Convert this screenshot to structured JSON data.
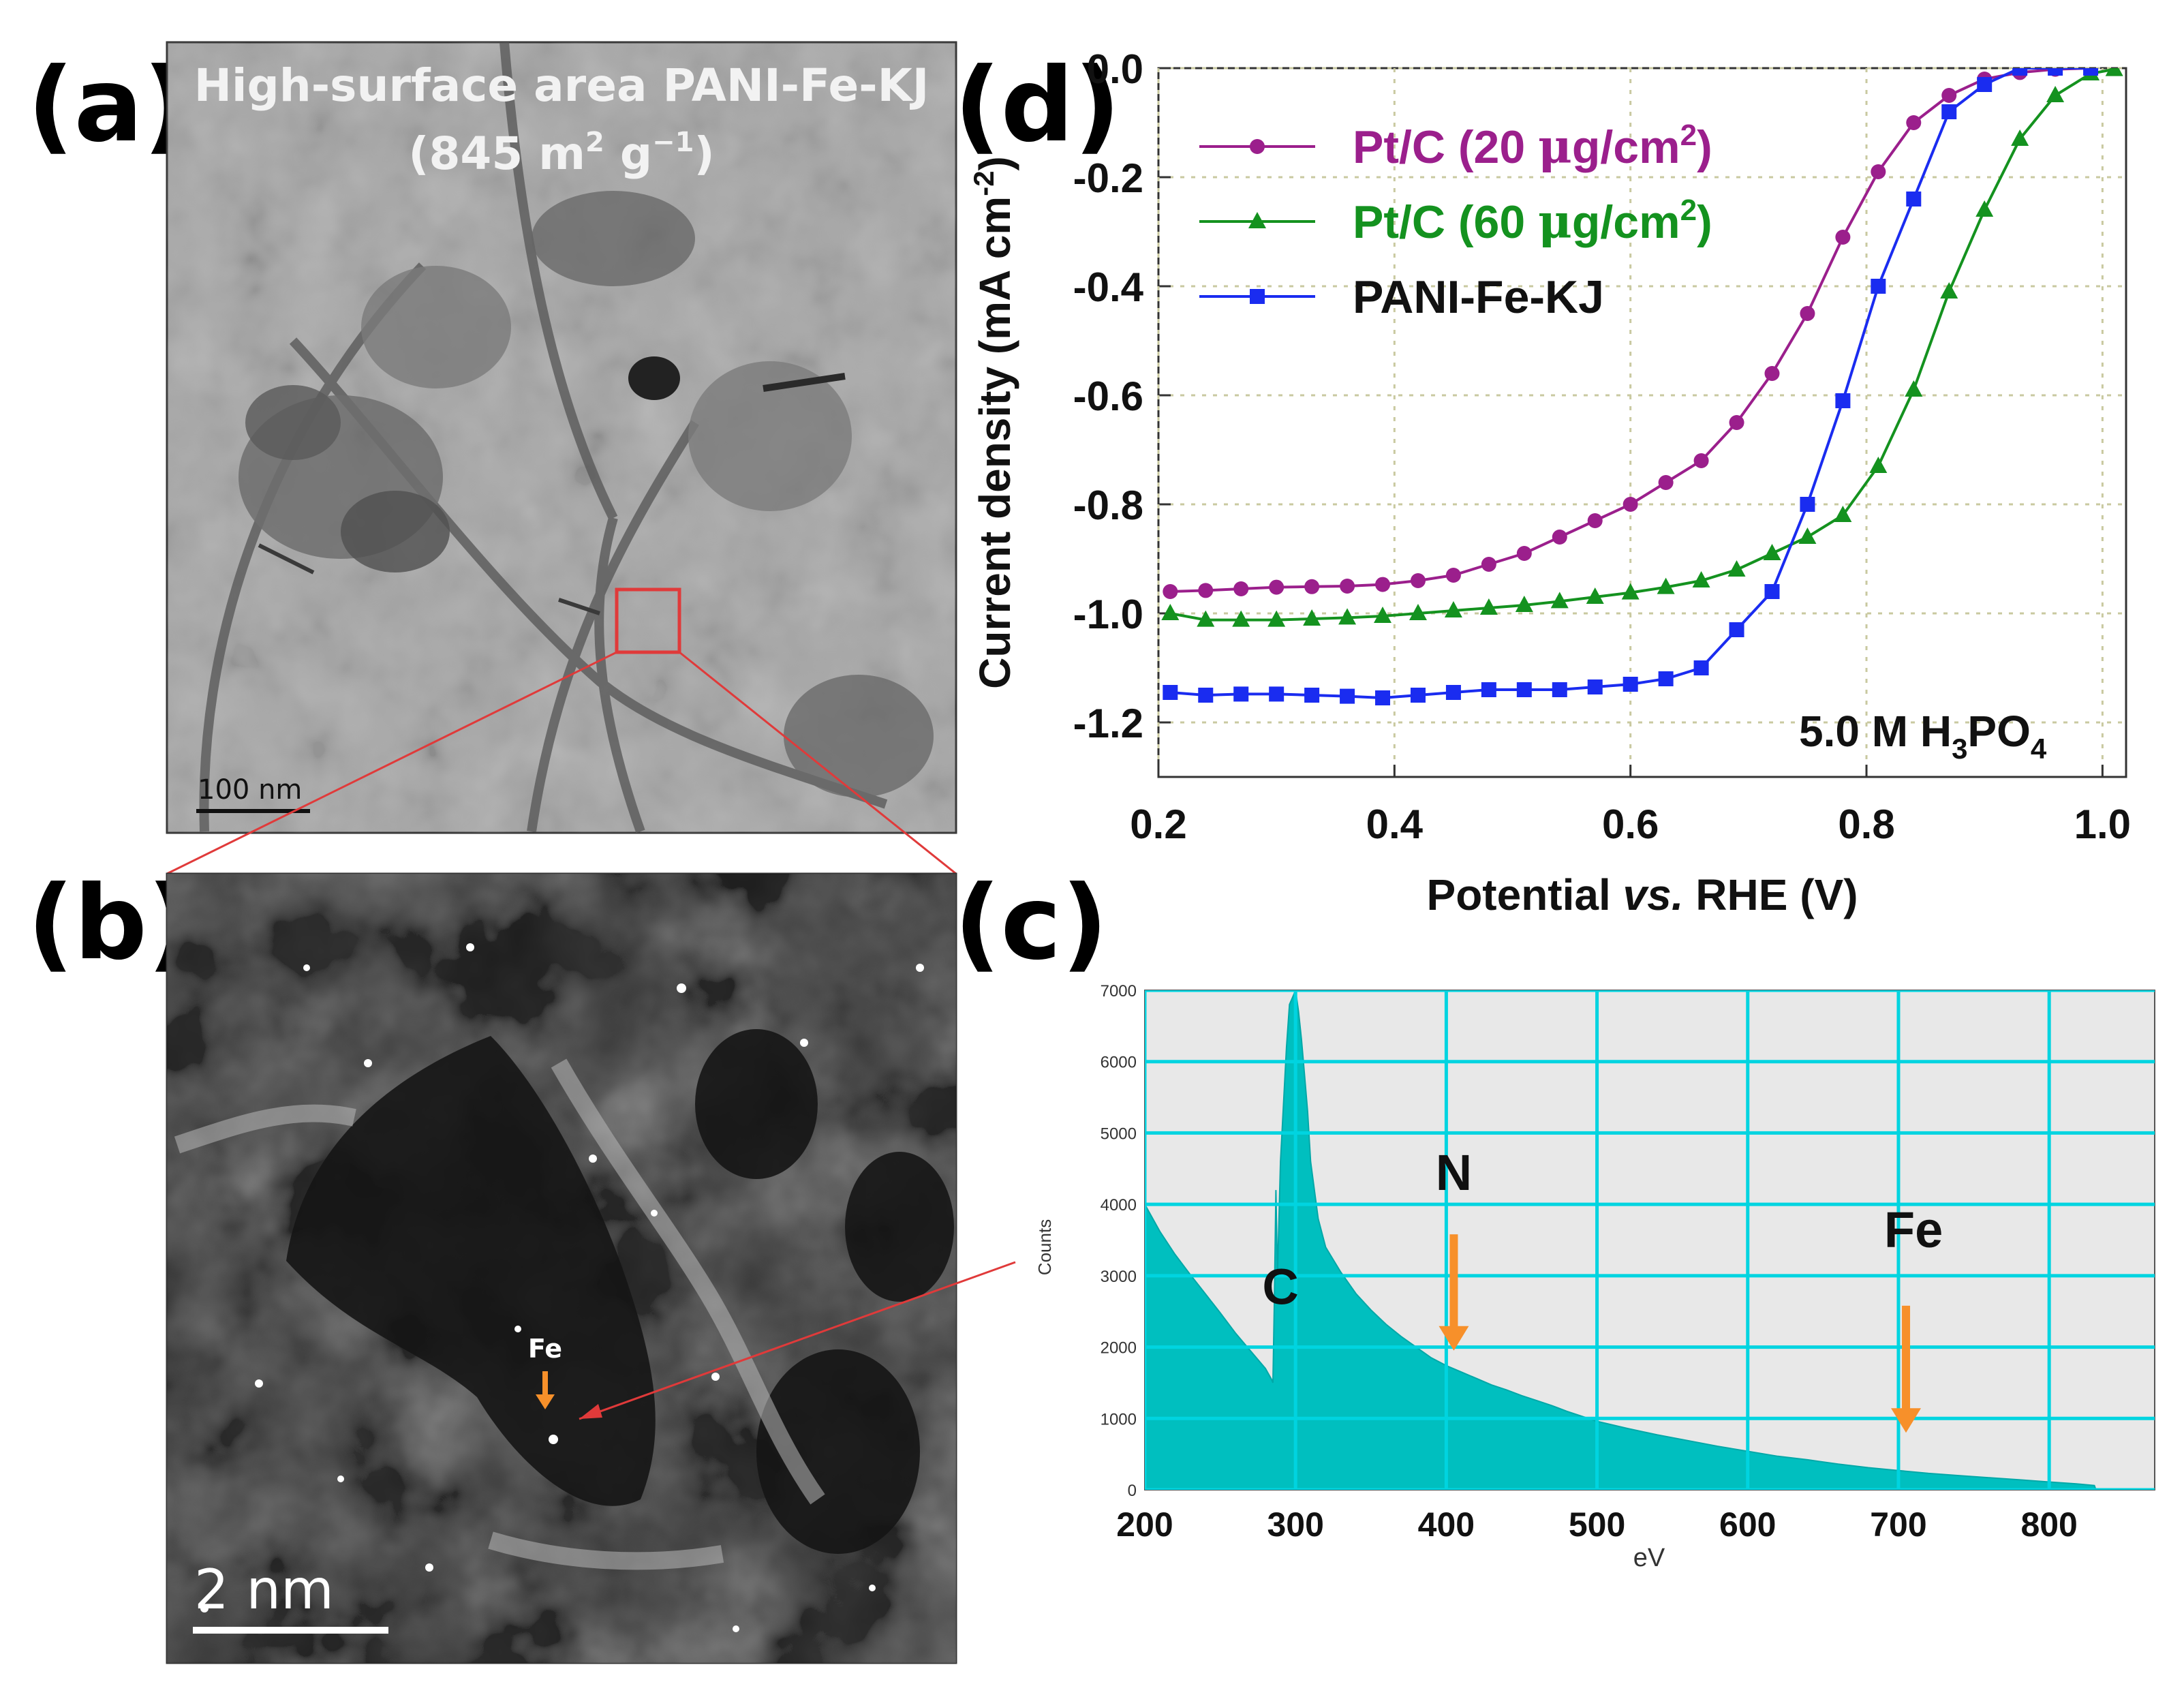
{
  "panels": {
    "a": {
      "label": "(a)",
      "title_line1": "High-surface area PANI-Fe-KJ",
      "title_line2_pre": "(845 m",
      "title_line2_sup1": "2",
      "title_line2_mid": " g",
      "title_line2_sup2": "−1",
      "title_line2_post": ")",
      "scale_bar": "100 nm"
    },
    "b": {
      "label": "(b)",
      "scale_bar": "2 nm",
      "fe_marker": "Fe"
    },
    "c": {
      "label": "(c)"
    },
    "d": {
      "label": "(d)"
    }
  },
  "colors": {
    "pt20": "#9b1f8c",
    "pt60": "#14921f",
    "pani": "#1a2cf0",
    "eels_fill": "#00bfbf",
    "eels_grid": "#00d4e0",
    "eels_bg": "#e8e8e8",
    "arrow": "#f7902a",
    "zoom_box": "#e03a3a"
  },
  "chart_data": [
    {
      "type": "line",
      "panel": "d",
      "xlabel_pre": "Potential ",
      "xlabel_italic": "vs.",
      "xlabel_post": " RHE (V)",
      "ylabel": "Current density (mA cm",
      "ylabel_sup": "-2",
      "ylabel_close": ")",
      "xlim": [
        0.2,
        1.02
      ],
      "ylim": [
        -1.3,
        0.0
      ],
      "xticks": [
        "0.2",
        "0.4",
        "0.6",
        "0.8",
        "1.0"
      ],
      "yticks": [
        "0.0",
        "-0.2",
        "-0.4",
        "-0.6",
        "-0.8",
        "-1.0",
        "-1.2"
      ],
      "grid": true,
      "annotation_pre": "5.0 M H",
      "annotation_sub1": "3",
      "annotation_mid": "PO",
      "annotation_sub2": "4",
      "legend_position": "top-left",
      "series": [
        {
          "name": "Pt/C (20 μg/cm²)",
          "legend_main": "Pt/C (20 ",
          "legend_mu": "μ",
          "legend_unit": "g/cm",
          "legend_sup": "2",
          "legend_close": ")",
          "marker": "circle",
          "color": "#9b1f8c",
          "x": [
            0.21,
            0.24,
            0.27,
            0.3,
            0.33,
            0.36,
            0.39,
            0.42,
            0.45,
            0.48,
            0.51,
            0.54,
            0.57,
            0.6,
            0.63,
            0.66,
            0.69,
            0.72,
            0.75,
            0.78,
            0.81,
            0.84,
            0.87,
            0.9,
            0.93,
            0.96,
            0.99
          ],
          "y": [
            -0.96,
            -0.958,
            -0.955,
            -0.952,
            -0.951,
            -0.95,
            -0.947,
            -0.94,
            -0.93,
            -0.91,
            -0.89,
            -0.86,
            -0.83,
            -0.8,
            -0.76,
            -0.72,
            -0.65,
            -0.56,
            -0.45,
            -0.31,
            -0.19,
            -0.1,
            -0.05,
            -0.02,
            -0.008,
            -0.002,
            0.0
          ]
        },
        {
          "name": "Pt/C (60 μg/cm²)",
          "legend_main": "Pt/C (60 ",
          "legend_mu": "μ",
          "legend_unit": "g/cm",
          "legend_sup": "2",
          "legend_close": ")",
          "marker": "triangle",
          "color": "#14921f",
          "x": [
            0.21,
            0.24,
            0.27,
            0.3,
            0.33,
            0.36,
            0.39,
            0.42,
            0.45,
            0.48,
            0.51,
            0.54,
            0.57,
            0.6,
            0.63,
            0.66,
            0.69,
            0.72,
            0.75,
            0.78,
            0.81,
            0.84,
            0.87,
            0.9,
            0.93,
            0.96,
            0.99,
            1.01
          ],
          "y": [
            -1.0,
            -1.012,
            -1.012,
            -1.012,
            -1.01,
            -1.008,
            -1.005,
            -1.0,
            -0.995,
            -0.99,
            -0.985,
            -0.978,
            -0.97,
            -0.962,
            -0.952,
            -0.94,
            -0.92,
            -0.89,
            -0.86,
            -0.82,
            -0.73,
            -0.59,
            -0.41,
            -0.26,
            -0.13,
            -0.05,
            -0.01,
            -0.002
          ]
        },
        {
          "name": "PANI-Fe-KJ",
          "legend_main": "PANI-Fe-KJ",
          "marker": "square",
          "color": "#1a2cf0",
          "x": [
            0.21,
            0.24,
            0.27,
            0.3,
            0.33,
            0.36,
            0.39,
            0.42,
            0.45,
            0.48,
            0.51,
            0.54,
            0.57,
            0.6,
            0.63,
            0.66,
            0.69,
            0.72,
            0.75,
            0.78,
            0.81,
            0.84,
            0.87,
            0.9,
            0.93,
            0.96,
            0.99
          ],
          "y": [
            -1.145,
            -1.15,
            -1.148,
            -1.148,
            -1.15,
            -1.152,
            -1.155,
            -1.15,
            -1.145,
            -1.14,
            -1.14,
            -1.14,
            -1.135,
            -1.13,
            -1.12,
            -1.1,
            -1.03,
            -0.96,
            -0.8,
            -0.61,
            -0.4,
            -0.24,
            -0.08,
            -0.03,
            0.0,
            0.0,
            0.0
          ]
        }
      ]
    },
    {
      "type": "area",
      "panel": "c",
      "xlabel": "eV",
      "ylabel": "Counts",
      "xlim": [
        200,
        870
      ],
      "ylim": [
        0,
        7000
      ],
      "xticks": [
        "200",
        "300",
        "400",
        "500",
        "600",
        "700",
        "800"
      ],
      "yticks": [
        "0",
        "1000",
        "2000",
        "3000",
        "4000",
        "5000",
        "6000",
        "7000"
      ],
      "grid": true,
      "x": [
        200,
        210,
        220,
        230,
        240,
        250,
        260,
        270,
        280,
        284,
        285,
        286,
        287,
        288,
        290,
        292,
        294,
        296,
        298,
        300,
        302,
        304,
        306,
        308,
        310,
        315,
        320,
        330,
        340,
        350,
        360,
        370,
        380,
        390,
        400,
        410,
        420,
        430,
        440,
        450,
        460,
        470,
        480,
        500,
        520,
        540,
        560,
        580,
        600,
        620,
        640,
        660,
        680,
        700,
        720,
        740,
        760,
        780,
        800,
        820,
        830,
        831
      ],
      "y": [
        4000,
        3620,
        3300,
        3020,
        2750,
        2480,
        2200,
        1950,
        1700,
        1550,
        1500,
        2700,
        4200,
        3000,
        4600,
        5400,
        6200,
        6800,
        6900,
        7000,
        6700,
        6300,
        5800,
        5300,
        4600,
        3800,
        3400,
        3050,
        2750,
        2520,
        2320,
        2150,
        2000,
        1850,
        1740,
        1650,
        1560,
        1470,
        1400,
        1320,
        1250,
        1180,
        1100,
        960,
        860,
        770,
        690,
        610,
        540,
        470,
        420,
        360,
        310,
        270,
        230,
        200,
        170,
        140,
        110,
        80,
        60,
        0
      ],
      "annotations": [
        {
          "text": "C",
          "x": 290,
          "y": 2600
        },
        {
          "text": "N",
          "x": 405,
          "y": 4200
        },
        {
          "text": "Fe",
          "x": 710,
          "y": 3400
        }
      ],
      "arrows": [
        {
          "x": 405,
          "y_from": 3580,
          "y_to": 1950
        },
        {
          "x": 705,
          "y_from": 2580,
          "y_to": 800
        }
      ]
    }
  ]
}
